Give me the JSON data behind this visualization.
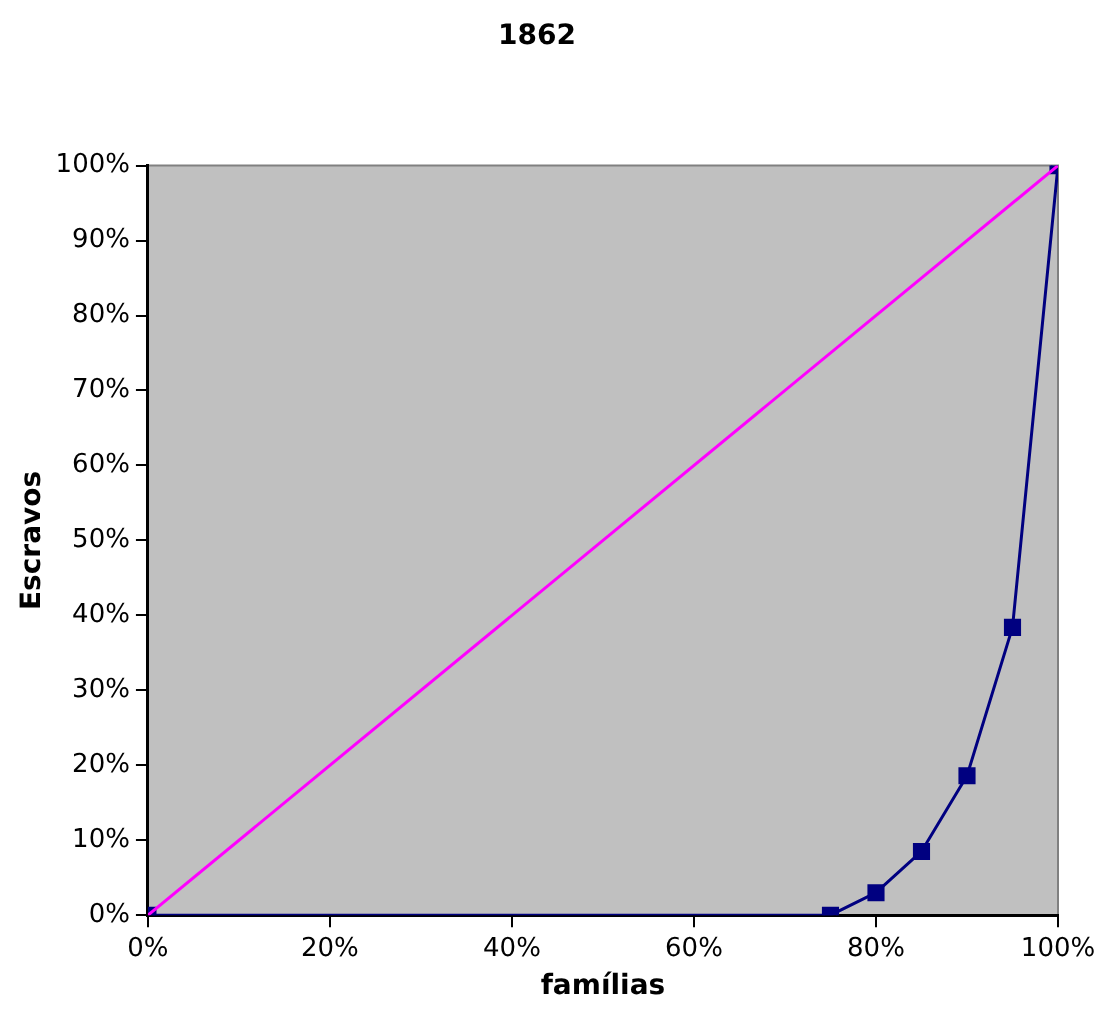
{
  "chart_data": {
    "type": "line",
    "title": "1862",
    "xlabel": "famílias",
    "ylabel": "Escravos",
    "xlim": [
      0,
      100
    ],
    "ylim": [
      0,
      100
    ],
    "xticks": [
      {
        "value": 0,
        "label": "0%"
      },
      {
        "value": 20,
        "label": "20%"
      },
      {
        "value": 40,
        "label": "40%"
      },
      {
        "value": 60,
        "label": "60%"
      },
      {
        "value": 80,
        "label": "80%"
      },
      {
        "value": 100,
        "label": "100%"
      }
    ],
    "yticks": [
      {
        "value": 0,
        "label": "0%"
      },
      {
        "value": 10,
        "label": "10%"
      },
      {
        "value": 20,
        "label": "20%"
      },
      {
        "value": 30,
        "label": "30%"
      },
      {
        "value": 40,
        "label": "40%"
      },
      {
        "value": 50,
        "label": "50%"
      },
      {
        "value": 60,
        "label": "60%"
      },
      {
        "value": 70,
        "label": "70%"
      },
      {
        "value": 80,
        "label": "80%"
      },
      {
        "value": 90,
        "label": "90%"
      },
      {
        "value": 100,
        "label": "100%"
      }
    ],
    "grid": false,
    "legend": false,
    "series": [
      {
        "color": "#ff00ff",
        "marker": "none",
        "x": [
          0,
          100
        ],
        "values": [
          0,
          100
        ]
      },
      {
        "color": "#000080",
        "marker": "square",
        "x": [
          0,
          75,
          80,
          85,
          90,
          95,
          100
        ],
        "values": [
          0,
          0,
          3,
          8.5,
          18.6,
          38.4,
          100
        ]
      }
    ]
  }
}
